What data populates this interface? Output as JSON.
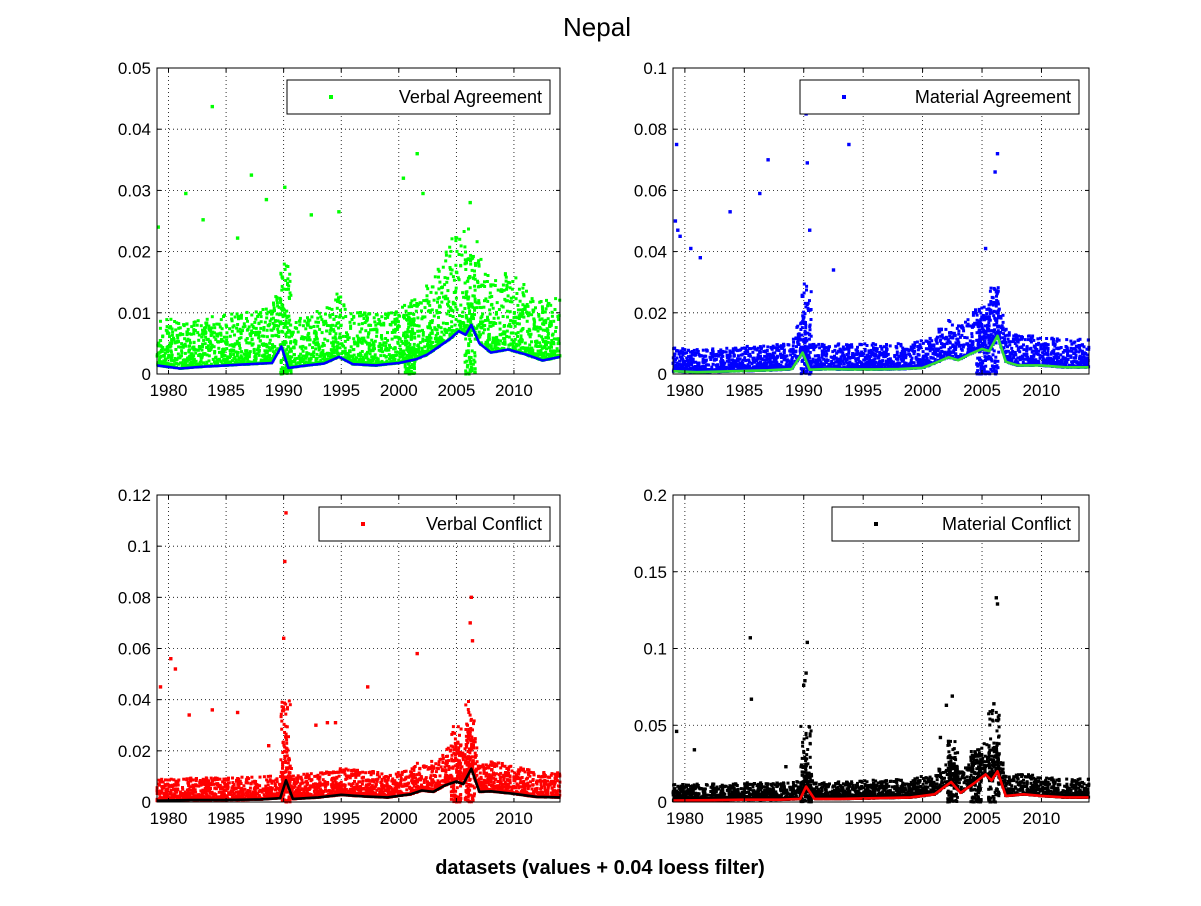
{
  "figure": {
    "title": "Nepal",
    "xlabel": "datasets (values + 0.04 loess filter)"
  },
  "chart_data": [
    {
      "type": "scatter",
      "legend": "Verbal Agreement",
      "legend_placement": "top-right",
      "grid": true,
      "xlim": [
        1979,
        2014
      ],
      "ylim": [
        0,
        0.05
      ],
      "xticks": [
        1980,
        1985,
        1990,
        1995,
        2000,
        2005,
        2010
      ],
      "yticks": [
        0,
        0.01,
        0.02,
        0.03,
        0.04,
        0.05
      ],
      "ytick_labels": [
        "0",
        "0.01",
        "0.02",
        "0.03",
        "0.04",
        "0.05"
      ],
      "point_color": "#00ff00",
      "line_color": "#0000ff",
      "base_level": 0.003,
      "spread": 0.006,
      "outliers": [
        {
          "x": 1983.8,
          "y": 0.0437
        },
        {
          "x": 1979.1,
          "y": 0.024
        },
        {
          "x": 1981.5,
          "y": 0.0295
        },
        {
          "x": 1987.2,
          "y": 0.0325
        },
        {
          "x": 1990.1,
          "y": 0.0305
        },
        {
          "x": 2000.4,
          "y": 0.032
        },
        {
          "x": 2001.6,
          "y": 0.036
        },
        {
          "x": 2002.1,
          "y": 0.0295
        },
        {
          "x": 2006.2,
          "y": 0.028
        },
        {
          "x": 1994.8,
          "y": 0.0265
        },
        {
          "x": 1992.4,
          "y": 0.026
        },
        {
          "x": 1983.0,
          "y": 0.0252
        },
        {
          "x": 1988.5,
          "y": 0.0285
        },
        {
          "x": 1986.0,
          "y": 0.0222
        }
      ],
      "spikes": [
        {
          "x": 1990.2,
          "height": 0.018
        },
        {
          "x": 2006.2,
          "height": 0.02
        },
        {
          "x": 2001.0,
          "height": 0.01
        }
      ],
      "loess": [
        {
          "x": 1979,
          "y": 0.0014
        },
        {
          "x": 1981,
          "y": 0.0009
        },
        {
          "x": 1983,
          "y": 0.0012
        },
        {
          "x": 1985,
          "y": 0.0014
        },
        {
          "x": 1987,
          "y": 0.0016
        },
        {
          "x": 1989,
          "y": 0.0018
        },
        {
          "x": 1989.8,
          "y": 0.0045
        },
        {
          "x": 1990.4,
          "y": 0.001
        },
        {
          "x": 1992,
          "y": 0.0014
        },
        {
          "x": 1993.5,
          "y": 0.0017
        },
        {
          "x": 1994.8,
          "y": 0.0028
        },
        {
          "x": 1996,
          "y": 0.0016
        },
        {
          "x": 1998,
          "y": 0.0014
        },
        {
          "x": 2000,
          "y": 0.0018
        },
        {
          "x": 2001.5,
          "y": 0.0024
        },
        {
          "x": 2002.5,
          "y": 0.0032
        },
        {
          "x": 2003.5,
          "y": 0.0045
        },
        {
          "x": 2004.5,
          "y": 0.0058
        },
        {
          "x": 2005.2,
          "y": 0.007
        },
        {
          "x": 2005.8,
          "y": 0.0064
        },
        {
          "x": 2006.3,
          "y": 0.008
        },
        {
          "x": 2007,
          "y": 0.005
        },
        {
          "x": 2008,
          "y": 0.0035
        },
        {
          "x": 2009.5,
          "y": 0.004
        },
        {
          "x": 2011,
          "y": 0.0032
        },
        {
          "x": 2012.5,
          "y": 0.0022
        },
        {
          "x": 2014,
          "y": 0.0028
        }
      ]
    },
    {
      "type": "scatter",
      "legend": "Material Agreement",
      "legend_placement": "top-right",
      "grid": true,
      "xlim": [
        1979,
        2014
      ],
      "ylim": [
        0,
        0.1
      ],
      "xticks": [
        1980,
        1985,
        1990,
        1995,
        2000,
        2005,
        2010
      ],
      "yticks": [
        0,
        0.02,
        0.04,
        0.06,
        0.08,
        0.1
      ],
      "ytick_labels": [
        "0",
        "0.02",
        "0.04",
        "0.06",
        "0.08",
        "0.1"
      ],
      "point_color": "#0000ff",
      "line_color": "#33dd33",
      "base_level": 0.002,
      "spread": 0.007,
      "outliers": [
        {
          "x": 1979.3,
          "y": 0.075
        },
        {
          "x": 1979.2,
          "y": 0.05
        },
        {
          "x": 1979.4,
          "y": 0.047
        },
        {
          "x": 1979.6,
          "y": 0.045
        },
        {
          "x": 1980.5,
          "y": 0.041
        },
        {
          "x": 1981.3,
          "y": 0.038
        },
        {
          "x": 1983.8,
          "y": 0.053
        },
        {
          "x": 1986.3,
          "y": 0.059
        },
        {
          "x": 1987.0,
          "y": 0.07
        },
        {
          "x": 1990.2,
          "y": 0.085
        },
        {
          "x": 1990.3,
          "y": 0.069
        },
        {
          "x": 1993.8,
          "y": 0.075
        },
        {
          "x": 2006.3,
          "y": 0.072
        },
        {
          "x": 2006.1,
          "y": 0.066
        },
        {
          "x": 2005.3,
          "y": 0.041
        },
        {
          "x": 1992.5,
          "y": 0.034
        },
        {
          "x": 1990.5,
          "y": 0.047
        }
      ],
      "spikes": [
        {
          "x": 1990.2,
          "height": 0.03
        },
        {
          "x": 2006.0,
          "height": 0.03
        },
        {
          "x": 2005.0,
          "height": 0.022
        }
      ],
      "loess": [
        {
          "x": 1979,
          "y": 0.0009
        },
        {
          "x": 1981,
          "y": 0.0006
        },
        {
          "x": 1983,
          "y": 0.0008
        },
        {
          "x": 1985,
          "y": 0.001
        },
        {
          "x": 1987,
          "y": 0.0012
        },
        {
          "x": 1989,
          "y": 0.0016
        },
        {
          "x": 1989.9,
          "y": 0.007
        },
        {
          "x": 1990.5,
          "y": 0.0014
        },
        {
          "x": 1992,
          "y": 0.0016
        },
        {
          "x": 1994,
          "y": 0.0015
        },
        {
          "x": 1996,
          "y": 0.0015
        },
        {
          "x": 1998,
          "y": 0.0016
        },
        {
          "x": 2000,
          "y": 0.002
        },
        {
          "x": 2001,
          "y": 0.0035
        },
        {
          "x": 2002.2,
          "y": 0.0055
        },
        {
          "x": 2003,
          "y": 0.0045
        },
        {
          "x": 2004,
          "y": 0.0065
        },
        {
          "x": 2005,
          "y": 0.0082
        },
        {
          "x": 2005.6,
          "y": 0.0075
        },
        {
          "x": 2006.3,
          "y": 0.0125
        },
        {
          "x": 2007,
          "y": 0.004
        },
        {
          "x": 2008,
          "y": 0.0028
        },
        {
          "x": 2010,
          "y": 0.0028
        },
        {
          "x": 2012,
          "y": 0.0022
        },
        {
          "x": 2014,
          "y": 0.0022
        }
      ]
    },
    {
      "type": "scatter",
      "legend": "Verbal Conflict",
      "legend_placement": "top-right",
      "grid": true,
      "xlim": [
        1979,
        2014
      ],
      "ylim": [
        0,
        0.12
      ],
      "xticks": [
        1980,
        1985,
        1990,
        1995,
        2000,
        2005,
        2010
      ],
      "yticks": [
        0,
        0.02,
        0.04,
        0.06,
        0.08,
        0.1,
        0.12
      ],
      "ytick_labels": [
        "0",
        "0.02",
        "0.04",
        "0.06",
        "0.08",
        "0.1",
        "0.12"
      ],
      "point_color": "#ff0000",
      "line_color": "#000000",
      "base_level": 0.002,
      "spread": 0.008,
      "outliers": [
        {
          "x": 1990.2,
          "y": 0.113
        },
        {
          "x": 1990.1,
          "y": 0.094
        },
        {
          "x": 1990.0,
          "y": 0.064
        },
        {
          "x": 1979.3,
          "y": 0.045
        },
        {
          "x": 1980.2,
          "y": 0.056
        },
        {
          "x": 1980.6,
          "y": 0.052
        },
        {
          "x": 1981.8,
          "y": 0.034
        },
        {
          "x": 1983.8,
          "y": 0.036
        },
        {
          "x": 1986.0,
          "y": 0.035
        },
        {
          "x": 1997.3,
          "y": 0.045
        },
        {
          "x": 2001.6,
          "y": 0.058
        },
        {
          "x": 2006.3,
          "y": 0.08
        },
        {
          "x": 2006.2,
          "y": 0.07
        },
        {
          "x": 2006.4,
          "y": 0.063
        },
        {
          "x": 1993.8,
          "y": 0.031
        },
        {
          "x": 1994.5,
          "y": 0.031
        },
        {
          "x": 1992.8,
          "y": 0.03
        },
        {
          "x": 1988.7,
          "y": 0.022
        }
      ],
      "spikes": [
        {
          "x": 1990.2,
          "height": 0.04
        },
        {
          "x": 2006.2,
          "height": 0.04
        },
        {
          "x": 2005.0,
          "height": 0.03
        }
      ],
      "loess": [
        {
          "x": 1979,
          "y": 0.0005
        },
        {
          "x": 1982,
          "y": 0.0008
        },
        {
          "x": 1985,
          "y": 0.0008
        },
        {
          "x": 1988,
          "y": 0.001
        },
        {
          "x": 1989.7,
          "y": 0.0015
        },
        {
          "x": 1990.2,
          "y": 0.0085
        },
        {
          "x": 1990.8,
          "y": 0.0012
        },
        {
          "x": 1993,
          "y": 0.0018
        },
        {
          "x": 1995,
          "y": 0.0028
        },
        {
          "x": 1997,
          "y": 0.0022
        },
        {
          "x": 1999,
          "y": 0.0018
        },
        {
          "x": 2001,
          "y": 0.003
        },
        {
          "x": 2002,
          "y": 0.0045
        },
        {
          "x": 2003,
          "y": 0.004
        },
        {
          "x": 2004,
          "y": 0.0065
        },
        {
          "x": 2005,
          "y": 0.008
        },
        {
          "x": 2005.6,
          "y": 0.007
        },
        {
          "x": 2006.3,
          "y": 0.013
        },
        {
          "x": 2007,
          "y": 0.004
        },
        {
          "x": 2008,
          "y": 0.0042
        },
        {
          "x": 2010,
          "y": 0.0032
        },
        {
          "x": 2012,
          "y": 0.002
        },
        {
          "x": 2014,
          "y": 0.0018
        }
      ]
    },
    {
      "type": "scatter",
      "legend": "Material Conflict",
      "legend_placement": "top-right",
      "grid": true,
      "xlim": [
        1979,
        2014
      ],
      "ylim": [
        0,
        0.2
      ],
      "xticks": [
        1980,
        1985,
        1990,
        1995,
        2000,
        2005,
        2010
      ],
      "yticks": [
        0,
        0.05,
        0.1,
        0.15,
        0.2
      ],
      "ytick_labels": [
        "0",
        "0.05",
        "0.1",
        "0.15",
        "0.2"
      ],
      "point_color": "#000000",
      "line_color": "#ff0000",
      "base_level": 0.003,
      "spread": 0.01,
      "outliers": [
        {
          "x": 1985.5,
          "y": 0.107
        },
        {
          "x": 1990.3,
          "y": 0.104
        },
        {
          "x": 1990.2,
          "y": 0.084
        },
        {
          "x": 1990.1,
          "y": 0.079
        },
        {
          "x": 1990.0,
          "y": 0.076
        },
        {
          "x": 1985.6,
          "y": 0.067
        },
        {
          "x": 2006.2,
          "y": 0.133
        },
        {
          "x": 2006.3,
          "y": 0.129
        },
        {
          "x": 2006.0,
          "y": 0.064
        },
        {
          "x": 2002.5,
          "y": 0.069
        },
        {
          "x": 2002.0,
          "y": 0.063
        },
        {
          "x": 1979.3,
          "y": 0.046
        },
        {
          "x": 2001.5,
          "y": 0.042
        },
        {
          "x": 1980.8,
          "y": 0.034
        },
        {
          "x": 1988.5,
          "y": 0.023
        }
      ],
      "spikes": [
        {
          "x": 1990.2,
          "height": 0.05
        },
        {
          "x": 2006.0,
          "height": 0.06
        },
        {
          "x": 2002.5,
          "height": 0.04
        },
        {
          "x": 2004.5,
          "height": 0.035
        }
      ],
      "loess": [
        {
          "x": 1979,
          "y": 0.001
        },
        {
          "x": 1982,
          "y": 0.0012
        },
        {
          "x": 1985,
          "y": 0.0015
        },
        {
          "x": 1988,
          "y": 0.0015
        },
        {
          "x": 1989.7,
          "y": 0.002
        },
        {
          "x": 1990.2,
          "y": 0.01
        },
        {
          "x": 1990.9,
          "y": 0.002
        },
        {
          "x": 1993,
          "y": 0.002
        },
        {
          "x": 1996,
          "y": 0.0025
        },
        {
          "x": 1999,
          "y": 0.003
        },
        {
          "x": 2001,
          "y": 0.005
        },
        {
          "x": 2002.4,
          "y": 0.013
        },
        {
          "x": 2003.2,
          "y": 0.006
        },
        {
          "x": 2004.3,
          "y": 0.012
        },
        {
          "x": 2005.3,
          "y": 0.018
        },
        {
          "x": 2005.8,
          "y": 0.014
        },
        {
          "x": 2006.3,
          "y": 0.02
        },
        {
          "x": 2007,
          "y": 0.004
        },
        {
          "x": 2008.5,
          "y": 0.005
        },
        {
          "x": 2010,
          "y": 0.004
        },
        {
          "x": 2012,
          "y": 0.003
        },
        {
          "x": 2014,
          "y": 0.003
        }
      ]
    }
  ]
}
